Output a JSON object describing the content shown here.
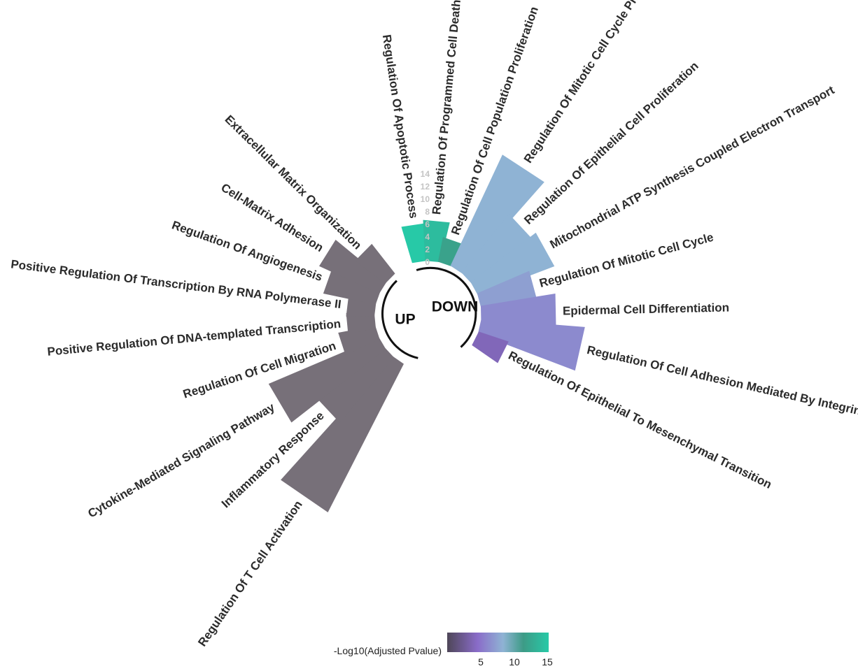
{
  "chart_data": {
    "type": "bar",
    "groups": [
      "UP",
      "DOWN"
    ],
    "radial_ticks": [
      "0",
      "2",
      "4",
      "6",
      "8",
      "10",
      "12",
      "14"
    ],
    "legend": {
      "title": "-Log10(Adjusted Pvalue)",
      "ticks": [
        "5",
        "10",
        "15"
      ],
      "colors": [
        "#4e4658",
        "#8a6cc9",
        "#8fb3d4",
        "#3d9b86",
        "#27c9a7"
      ]
    },
    "up": {
      "color": "#777079",
      "categories": [
        "Regulation Of T Cell Activation",
        "Inflammatory Response",
        "Cytokine-Mediated Signaling Pathway",
        "Regulation Of Cell Migration",
        "Positive Regulation Of DNA-templated Transcription",
        "Positive Regulation Of Transcription By RNA Polymerase II",
        "Regulation Of Angiogenesis",
        "Cell-Matrix Adhesion",
        "Extracellular Matrix Organization"
      ],
      "values": [
        26.5,
        13.5,
        19,
        6,
        4.5,
        4.5,
        8.5,
        10.5,
        6
      ],
      "pvalue": [
        3,
        3,
        3,
        3,
        3,
        3,
        3,
        3,
        3
      ]
    },
    "down": {
      "categories": [
        "Regulation Of Apoptotic Process",
        "Regulation Of Programmed Cell Death",
        "Regulation Of Cell Population Proliferation",
        "Regulation Of Mitotic Cell Cycle Phase Transition",
        "Regulation Of Epithelial Cell Proliferation",
        "Mitochondrial ATP Synthesis Coupled Electron Transport",
        "Regulation Of Mitotic Cell Cycle",
        "Epidermal Cell Differentiation",
        "Regulation Of Cell Adhesion Mediated By Integrin",
        "Regulation Of Epithelial To Mesenchymal Transition"
      ],
      "values": [
        6,
        6.5,
        4,
        19.5,
        12,
        13,
        9,
        12,
        16.5,
        5
      ],
      "pvalue": [
        15,
        14,
        12,
        8,
        8,
        8,
        7,
        6,
        6,
        4
      ]
    }
  }
}
